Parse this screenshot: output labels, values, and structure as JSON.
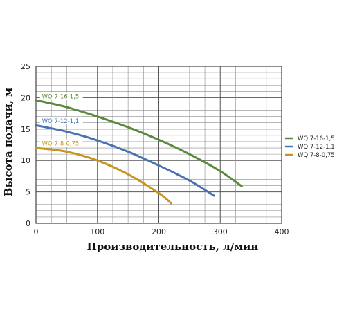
{
  "chart_data": {
    "type": "line",
    "xlabel": "Производительность, л/мин",
    "ylabel": "Высота подачи, м",
    "xlim": [
      0,
      400
    ],
    "ylim": [
      0,
      25
    ],
    "xticks": [
      0,
      100,
      200,
      300,
      400
    ],
    "yticks": [
      0,
      5,
      10,
      15,
      20,
      25
    ],
    "grid": true,
    "legend_position": "right",
    "series": [
      {
        "name": "WQ 7-16-1,5",
        "color": "#5a8a3c",
        "points": [
          [
            0,
            19.6
          ],
          [
            50,
            18.5
          ],
          [
            100,
            17.0
          ],
          [
            150,
            15.3
          ],
          [
            200,
            13.3
          ],
          [
            250,
            11.0
          ],
          [
            300,
            8.3
          ],
          [
            335,
            5.9
          ]
        ]
      },
      {
        "name": "WQ 7-12-1,1",
        "color": "#4a72b0",
        "points": [
          [
            0,
            15.6
          ],
          [
            50,
            14.6
          ],
          [
            100,
            13.2
          ],
          [
            150,
            11.4
          ],
          [
            200,
            9.2
          ],
          [
            250,
            6.8
          ],
          [
            290,
            4.4
          ]
        ]
      },
      {
        "name": "WQ 7-8-0,75",
        "color": "#c7951e",
        "points": [
          [
            0,
            12.0
          ],
          [
            50,
            11.4
          ],
          [
            100,
            10.0
          ],
          [
            150,
            7.8
          ],
          [
            200,
            4.8
          ],
          [
            220,
            3.2
          ]
        ]
      }
    ]
  }
}
